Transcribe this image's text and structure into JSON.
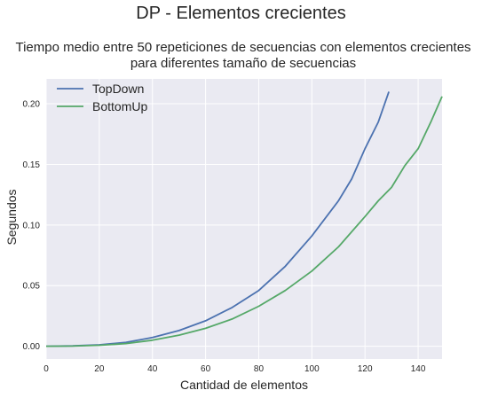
{
  "suptitle": "DP - Elementos crecientes",
  "chart_data": {
    "type": "line",
    "title_lines": [
      "Tiempo medio entre 50 repeticiones de secuencias con elementos crecientes",
      "para diferentes tamaño de secuencias"
    ],
    "xlabel": "Cantidad de elementos",
    "ylabel": "Segundos",
    "xlim": [
      0,
      149
    ],
    "ylim": [
      -0.0105,
      0.2205
    ],
    "xticks": [
      0,
      20,
      40,
      60,
      80,
      100,
      120,
      140
    ],
    "yticks": [
      0.0,
      0.05,
      0.1,
      0.15,
      0.2
    ],
    "ytick_labels": [
      "0.00",
      "0.05",
      "0.10",
      "0.15",
      "0.20"
    ],
    "grid": true,
    "legend_position": "upper-left",
    "series": [
      {
        "name": "TopDown",
        "color": "#4c72b0",
        "points": [
          [
            0,
            0.0
          ],
          [
            10,
            0.0003
          ],
          [
            20,
            0.0012
          ],
          [
            30,
            0.0032
          ],
          [
            40,
            0.0072
          ],
          [
            50,
            0.013
          ],
          [
            60,
            0.021
          ],
          [
            70,
            0.032
          ],
          [
            80,
            0.046
          ],
          [
            90,
            0.066
          ],
          [
            100,
            0.091
          ],
          [
            110,
            0.12
          ],
          [
            115,
            0.138
          ],
          [
            120,
            0.163
          ],
          [
            125,
            0.185
          ],
          [
            129,
            0.21
          ]
        ]
      },
      {
        "name": "BottomUp",
        "color": "#55a868",
        "points": [
          [
            0,
            0.0
          ],
          [
            10,
            0.0002
          ],
          [
            20,
            0.0008
          ],
          [
            30,
            0.0022
          ],
          [
            40,
            0.005
          ],
          [
            50,
            0.0092
          ],
          [
            60,
            0.0148
          ],
          [
            70,
            0.0225
          ],
          [
            80,
            0.033
          ],
          [
            90,
            0.046
          ],
          [
            100,
            0.062
          ],
          [
            110,
            0.082
          ],
          [
            120,
            0.107
          ],
          [
            125,
            0.12
          ],
          [
            130,
            0.131
          ],
          [
            135,
            0.149
          ],
          [
            140,
            0.163
          ],
          [
            145,
            0.186
          ],
          [
            149,
            0.206
          ]
        ]
      }
    ]
  }
}
